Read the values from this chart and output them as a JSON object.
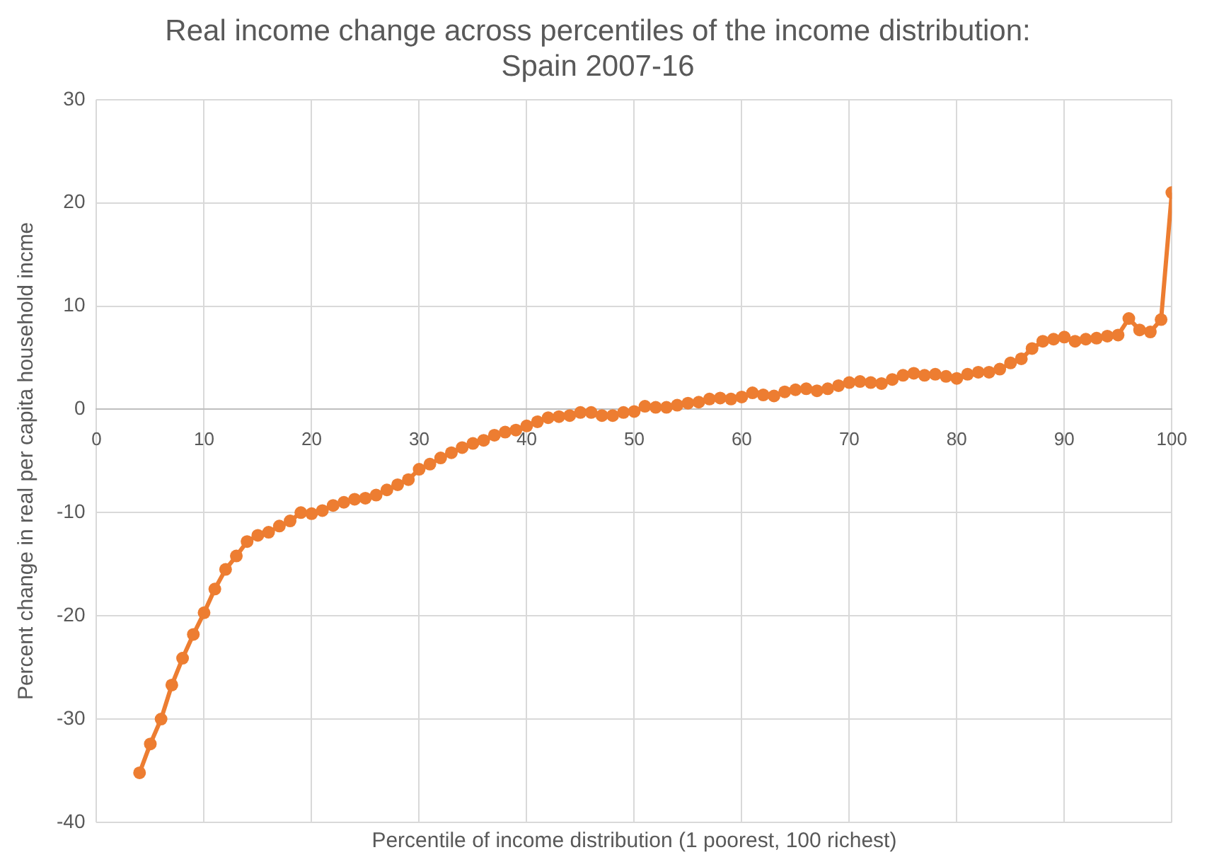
{
  "chart_data": {
    "type": "line",
    "title": "Real income change across percentiles of the income distribution:\nSpain 2007-16",
    "xlabel": "Percentile of income distribution (1 poorest, 100 richest)",
    "ylabel": "Percent change in real per capita household incme",
    "x": [
      4,
      5,
      6,
      7,
      8,
      9,
      10,
      11,
      12,
      13,
      14,
      15,
      16,
      17,
      18,
      19,
      20,
      21,
      22,
      23,
      24,
      25,
      26,
      27,
      28,
      29,
      30,
      31,
      32,
      33,
      34,
      35,
      36,
      37,
      38,
      39,
      40,
      41,
      42,
      43,
      44,
      45,
      46,
      47,
      48,
      49,
      50,
      51,
      52,
      53,
      54,
      55,
      56,
      57,
      58,
      59,
      60,
      61,
      62,
      63,
      64,
      65,
      66,
      67,
      68,
      69,
      70,
      71,
      72,
      73,
      74,
      75,
      76,
      77,
      78,
      79,
      80,
      81,
      82,
      83,
      84,
      85,
      86,
      87,
      88,
      89,
      90,
      91,
      92,
      93,
      94,
      95,
      96,
      97,
      98,
      99,
      100
    ],
    "series": [
      {
        "color": "#ed7d31",
        "values": [
          -35.2,
          -32.4,
          -30,
          -26.7,
          -24.1,
          -21.8,
          -19.7,
          -17.4,
          -15.5,
          -14.2,
          -12.8,
          -12.2,
          -11.9,
          -11.3,
          -10.8,
          -10,
          -10.1,
          -9.8,
          -9.3,
          -9,
          -8.7,
          -8.6,
          -8.3,
          -7.8,
          -7.3,
          -6.8,
          -5.8,
          -5.3,
          -4.7,
          -4.2,
          -3.7,
          -3.3,
          -3,
          -2.5,
          -2.2,
          -2,
          -1.6,
          -1.2,
          -0.8,
          -0.7,
          -0.6,
          -0.3,
          -0.3,
          -0.6,
          -0.6,
          -0.3,
          -0.2,
          0.3,
          0.2,
          0.2,
          0.4,
          0.6,
          0.7,
          1,
          1.1,
          1,
          1.2,
          1.6,
          1.4,
          1.3,
          1.7,
          1.9,
          2,
          1.8,
          2,
          2.3,
          2.6,
          2.7,
          2.6,
          2.5,
          2.9,
          3.3,
          3.5,
          3.3,
          3.4,
          3.2,
          3,
          3.4,
          3.6,
          3.6,
          3.9,
          4.5,
          4.9,
          5.9,
          6.6,
          6.8,
          7,
          6.6,
          6.8,
          6.9,
          7.1,
          7.2,
          8.8,
          7.7,
          7.5,
          8.7,
          21
        ]
      }
    ],
    "xlim": [
      0,
      100
    ],
    "xticks": [
      0,
      10,
      20,
      30,
      40,
      50,
      60,
      70,
      80,
      90,
      100
    ],
    "ylim": [
      -40,
      30
    ],
    "yticks": [
      -40,
      -30,
      -20,
      -10,
      0,
      10,
      20,
      30
    ],
    "grid": true,
    "marker": "circle",
    "line_style": "solid"
  }
}
